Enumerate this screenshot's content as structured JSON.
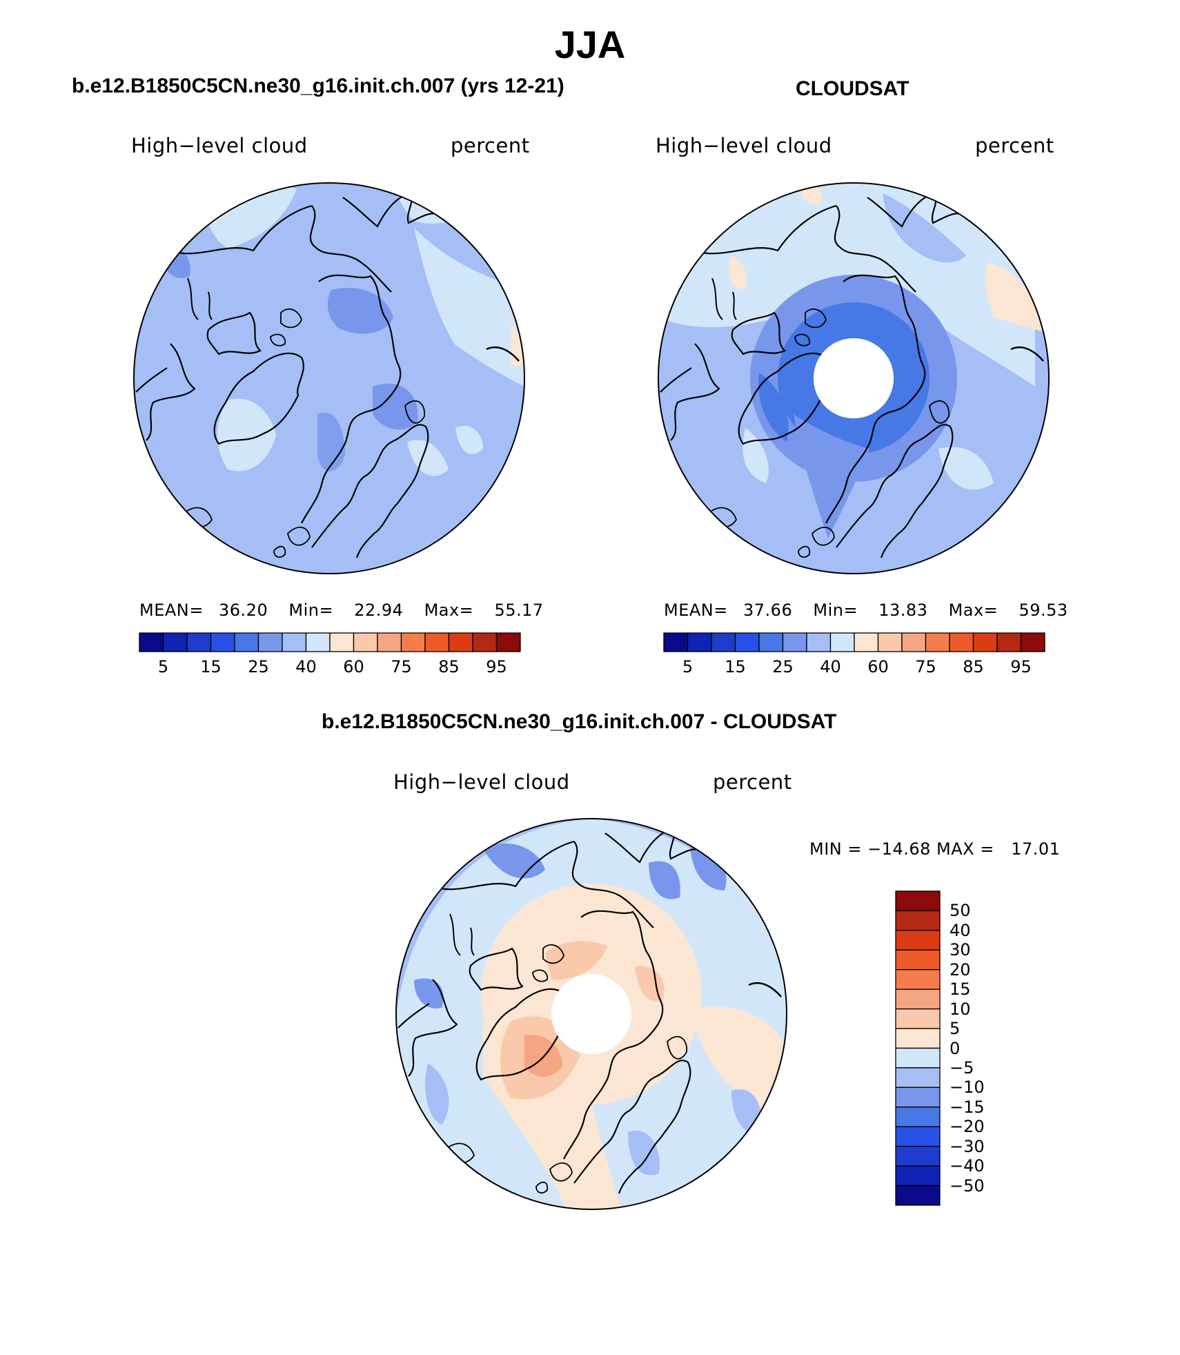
{
  "title": "JJA",
  "panels": [
    {
      "id": "model",
      "title": "b.e12.B1850C5CN.ne30_g16.init.ch.007 (yrs 12-21)",
      "left_label": "High−level cloud",
      "right_label": "percent",
      "stats": {
        "mean_label": "MEAN=",
        "mean": "36.20",
        "min_label": "Min=",
        "min": "22.94",
        "max_label": "Max=",
        "max": "55.17"
      },
      "colorbar": {
        "ticks": [
          "5",
          "15",
          "25",
          "40",
          "60",
          "75",
          "85",
          "95"
        ]
      }
    },
    {
      "id": "obs",
      "title": "CLOUDSAT",
      "left_label": "High−level cloud",
      "right_label": "percent",
      "stats": {
        "mean_label": "MEAN=",
        "mean": "37.66",
        "min_label": "Min=",
        "min": "13.83",
        "max_label": "Max=",
        "max": "59.53"
      },
      "colorbar": {
        "ticks": [
          "5",
          "15",
          "25",
          "40",
          "60",
          "75",
          "85",
          "95"
        ]
      }
    },
    {
      "id": "diff",
      "title": "b.e12.B1850C5CN.ne30_g16.init.ch.007 - CLOUDSAT",
      "left_label": "High−level cloud",
      "right_label": "percent",
      "stats_text": "MIN = −14.68 MAX =   17.01",
      "colorbar": {
        "ticks": [
          "50",
          "40",
          "30",
          "20",
          "15",
          "10",
          "5",
          "0",
          "−5",
          "−10",
          "−15",
          "−20",
          "−30",
          "−40",
          "−50"
        ]
      }
    }
  ],
  "colors": {
    "abs_scale": [
      "#0a0a8c",
      "#0f23b4",
      "#1e3ccd",
      "#2850e6",
      "#4678e6",
      "#7896eb",
      "#a5bef5",
      "#d2e6fa",
      "#fae6d2",
      "#fac8aa",
      "#f5a582",
      "#f57d4b",
      "#f05a28",
      "#dc3c14",
      "#b42814",
      "#8c0a0a"
    ],
    "diff_scale_top_down": [
      "#8c0a0a",
      "#b42814",
      "#dc3c14",
      "#f05a28",
      "#f57d4b",
      "#f5a582",
      "#fac8aa",
      "#fae6d2",
      "#d2e6fa",
      "#a5bef5",
      "#7896eb",
      "#4678e6",
      "#2850e6",
      "#1e3ccd",
      "#0f23b4",
      "#0a0a8c"
    ],
    "coast": "#000000"
  }
}
